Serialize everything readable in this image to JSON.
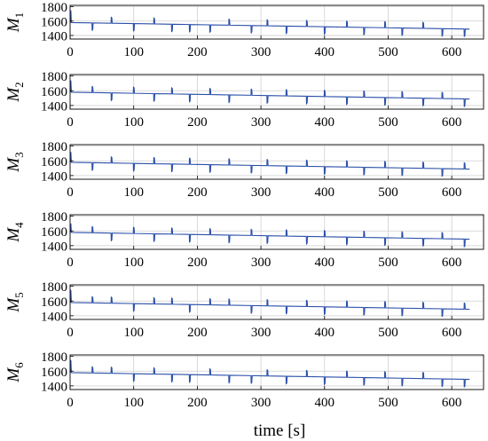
{
  "colors": {
    "line": "#2a4fa8",
    "grid": "#cfcfcf",
    "frame": "#000000"
  },
  "shared": {
    "xlabel": "time [s]",
    "xlim": [
      0,
      650
    ],
    "ylim": [
      1350,
      1820
    ],
    "x_ticks": [
      0,
      100,
      200,
      300,
      400,
      500,
      600
    ],
    "y_ticks": [
      1400,
      1600,
      1800
    ],
    "grid": true
  },
  "chart_data": [
    {
      "type": "line",
      "ylabel_base": "M",
      "ylabel_sub": "1",
      "baseline": {
        "x": [
          0,
          650
        ],
        "y": [
          1580,
          1485
        ]
      },
      "initial_spike": 1750,
      "events": [
        {
          "t": 35,
          "dir": -1
        },
        {
          "t": 65,
          "dir": 1
        },
        {
          "t": 100,
          "dir": -1
        },
        {
          "t": 132,
          "dir": 1
        },
        {
          "t": 160,
          "dir": -1
        },
        {
          "t": 188,
          "dir": -1
        },
        {
          "t": 220,
          "dir": -1
        },
        {
          "t": 250,
          "dir": 1
        },
        {
          "t": 285,
          "dir": -1
        },
        {
          "t": 310,
          "dir": 1
        },
        {
          "t": 340,
          "dir": -1
        },
        {
          "t": 372,
          "dir": 1
        },
        {
          "t": 400,
          "dir": -1
        },
        {
          "t": 435,
          "dir": 1
        },
        {
          "t": 462,
          "dir": -1
        },
        {
          "t": 495,
          "dir": 1
        },
        {
          "t": 522,
          "dir": -1
        },
        {
          "t": 555,
          "dir": 1
        },
        {
          "t": 585,
          "dir": -1
        },
        {
          "t": 620,
          "dir": -1
        }
      ]
    },
    {
      "type": "line",
      "ylabel_base": "M",
      "ylabel_sub": "2",
      "baseline": {
        "x": [
          0,
          650
        ],
        "y": [
          1580,
          1485
        ]
      },
      "initial_spike": 1740,
      "events": [
        {
          "t": 35,
          "dir": 1
        },
        {
          "t": 65,
          "dir": -1
        },
        {
          "t": 100,
          "dir": 1
        },
        {
          "t": 132,
          "dir": -1
        },
        {
          "t": 160,
          "dir": 1
        },
        {
          "t": 188,
          "dir": -1
        },
        {
          "t": 220,
          "dir": 1
        },
        {
          "t": 250,
          "dir": -1
        },
        {
          "t": 285,
          "dir": 1
        },
        {
          "t": 310,
          "dir": -1
        },
        {
          "t": 340,
          "dir": 1
        },
        {
          "t": 372,
          "dir": -1
        },
        {
          "t": 400,
          "dir": 1
        },
        {
          "t": 435,
          "dir": -1
        },
        {
          "t": 462,
          "dir": 1
        },
        {
          "t": 495,
          "dir": -1
        },
        {
          "t": 522,
          "dir": 1
        },
        {
          "t": 555,
          "dir": -1
        },
        {
          "t": 585,
          "dir": 1
        },
        {
          "t": 620,
          "dir": -1
        }
      ]
    },
    {
      "type": "line",
      "ylabel_base": "M",
      "ylabel_sub": "3",
      "baseline": {
        "x": [
          0,
          650
        ],
        "y": [
          1580,
          1485
        ]
      },
      "initial_spike": 1720,
      "events": [
        {
          "t": 35,
          "dir": -1
        },
        {
          "t": 65,
          "dir": 1
        },
        {
          "t": 100,
          "dir": -1
        },
        {
          "t": 132,
          "dir": 1
        },
        {
          "t": 160,
          "dir": -1
        },
        {
          "t": 188,
          "dir": 1
        },
        {
          "t": 220,
          "dir": -1
        },
        {
          "t": 250,
          "dir": 1
        },
        {
          "t": 285,
          "dir": -1
        },
        {
          "t": 310,
          "dir": 1
        },
        {
          "t": 340,
          "dir": -1
        },
        {
          "t": 372,
          "dir": 1
        },
        {
          "t": 400,
          "dir": -1
        },
        {
          "t": 435,
          "dir": 1
        },
        {
          "t": 462,
          "dir": -1
        },
        {
          "t": 495,
          "dir": 1
        },
        {
          "t": 522,
          "dir": -1
        },
        {
          "t": 555,
          "dir": 1
        },
        {
          "t": 585,
          "dir": -1
        },
        {
          "t": 620,
          "dir": 1
        }
      ]
    },
    {
      "type": "line",
      "ylabel_base": "M",
      "ylabel_sub": "4",
      "baseline": {
        "x": [
          0,
          650
        ],
        "y": [
          1580,
          1485
        ]
      },
      "initial_spike": 1700,
      "events": [
        {
          "t": 35,
          "dir": 1
        },
        {
          "t": 65,
          "dir": -1
        },
        {
          "t": 100,
          "dir": 1
        },
        {
          "t": 132,
          "dir": -1
        },
        {
          "t": 160,
          "dir": 1
        },
        {
          "t": 188,
          "dir": -1
        },
        {
          "t": 220,
          "dir": 1
        },
        {
          "t": 250,
          "dir": -1
        },
        {
          "t": 285,
          "dir": 1
        },
        {
          "t": 310,
          "dir": -1
        },
        {
          "t": 340,
          "dir": 1
        },
        {
          "t": 372,
          "dir": -1
        },
        {
          "t": 400,
          "dir": 1
        },
        {
          "t": 435,
          "dir": -1
        },
        {
          "t": 462,
          "dir": 1
        },
        {
          "t": 495,
          "dir": -1
        },
        {
          "t": 522,
          "dir": 1
        },
        {
          "t": 555,
          "dir": -1
        },
        {
          "t": 585,
          "dir": 1
        },
        {
          "t": 620,
          "dir": -1
        }
      ]
    },
    {
      "type": "line",
      "ylabel_base": "M",
      "ylabel_sub": "5",
      "baseline": {
        "x": [
          0,
          650
        ],
        "y": [
          1580,
          1485
        ]
      },
      "initial_spike": 1750,
      "events": [
        {
          "t": 35,
          "dir": 1
        },
        {
          "t": 65,
          "dir": 1
        },
        {
          "t": 100,
          "dir": -1
        },
        {
          "t": 132,
          "dir": 1
        },
        {
          "t": 160,
          "dir": 1
        },
        {
          "t": 188,
          "dir": -1
        },
        {
          "t": 220,
          "dir": 1
        },
        {
          "t": 250,
          "dir": 1
        },
        {
          "t": 285,
          "dir": -1
        },
        {
          "t": 310,
          "dir": 1
        },
        {
          "t": 340,
          "dir": -1
        },
        {
          "t": 372,
          "dir": 1
        },
        {
          "t": 400,
          "dir": -1
        },
        {
          "t": 435,
          "dir": 1
        },
        {
          "t": 462,
          "dir": -1
        },
        {
          "t": 495,
          "dir": 1
        },
        {
          "t": 522,
          "dir": -1
        },
        {
          "t": 555,
          "dir": 1
        },
        {
          "t": 585,
          "dir": -1
        },
        {
          "t": 620,
          "dir": 1
        }
      ]
    },
    {
      "type": "line",
      "ylabel_base": "M",
      "ylabel_sub": "6",
      "baseline": {
        "x": [
          0,
          650
        ],
        "y": [
          1580,
          1485
        ]
      },
      "initial_spike": 1750,
      "events": [
        {
          "t": 35,
          "dir": 1
        },
        {
          "t": 65,
          "dir": 1
        },
        {
          "t": 100,
          "dir": -1
        },
        {
          "t": 132,
          "dir": 1
        },
        {
          "t": 160,
          "dir": -1
        },
        {
          "t": 188,
          "dir": -1
        },
        {
          "t": 220,
          "dir": 1
        },
        {
          "t": 250,
          "dir": -1
        },
        {
          "t": 285,
          "dir": -1
        },
        {
          "t": 310,
          "dir": 1
        },
        {
          "t": 340,
          "dir": -1
        },
        {
          "t": 372,
          "dir": 1
        },
        {
          "t": 400,
          "dir": -1
        },
        {
          "t": 435,
          "dir": 1
        },
        {
          "t": 462,
          "dir": -1
        },
        {
          "t": 495,
          "dir": 1
        },
        {
          "t": 522,
          "dir": -1
        },
        {
          "t": 555,
          "dir": 1
        },
        {
          "t": 585,
          "dir": -1
        },
        {
          "t": 620,
          "dir": -1
        }
      ]
    }
  ]
}
